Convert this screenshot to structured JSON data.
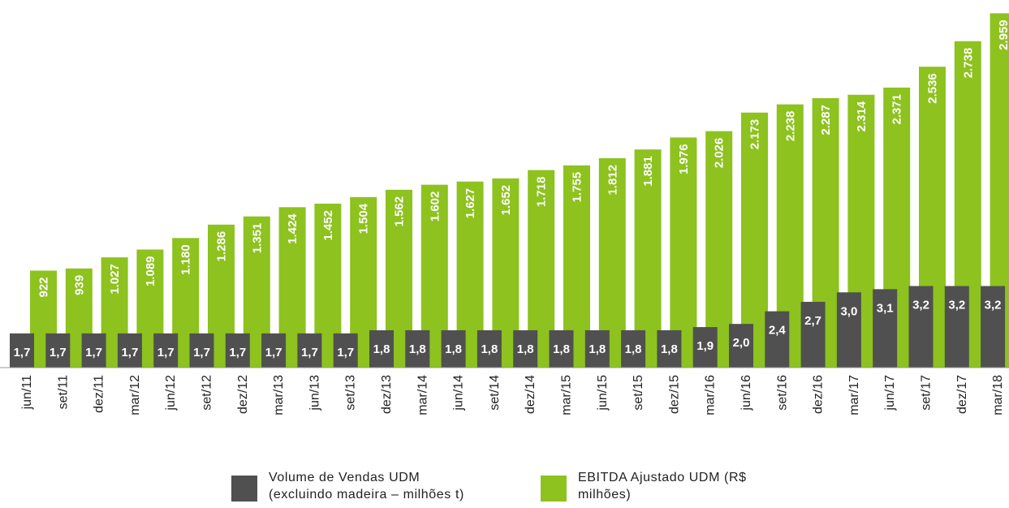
{
  "chart_data": {
    "type": "bar",
    "categories": [
      "jun/11",
      "set/11",
      "dez/11",
      "mar/12",
      "jun/12",
      "set/12",
      "dez/12",
      "mar/13",
      "jun/13",
      "set/13",
      "dez/13",
      "mar/14",
      "jun/14",
      "set/14",
      "dez/14",
      "mar/15",
      "jun/15",
      "set/15",
      "dez/15",
      "mar/16",
      "jun/16",
      "set/16",
      "dez/16",
      "mar/17",
      "jun/17",
      "set/17",
      "dez/17",
      "mar/18"
    ],
    "series": [
      {
        "name": "Volume de Vendas UDM (excluindo madeira – milhões t)",
        "color": "#505050",
        "axis": "y2",
        "values": [
          1.7,
          1.7,
          1.7,
          1.7,
          1.7,
          1.7,
          1.7,
          1.7,
          1.7,
          1.7,
          1.8,
          1.8,
          1.8,
          1.8,
          1.8,
          1.8,
          1.8,
          1.8,
          1.8,
          1.9,
          2.0,
          2.4,
          2.7,
          3.0,
          3.1,
          3.2,
          3.2,
          3.2
        ],
        "value_labels": [
          "1,7",
          "1,7",
          "1,7",
          "1,7",
          "1,7",
          "1,7",
          "1,7",
          "1,7",
          "1,7",
          "1,7",
          "1,8",
          "1,8",
          "1,8",
          "1,8",
          "1,8",
          "1,8",
          "1,8",
          "1,8",
          "1,8",
          "1,9",
          "2,0",
          "2,4",
          "2,7",
          "3,0",
          "3,1",
          "3,2",
          "3,2",
          "3,2"
        ]
      },
      {
        "name": "EBITDA Ajustado UDM (R$ milhões)",
        "color": "#8dc21f",
        "values": [
          922,
          939,
          1027,
          1089,
          1180,
          1286,
          1351,
          1424,
          1452,
          1504,
          1562,
          1602,
          1627,
          1652,
          1718,
          1755,
          1812,
          1881,
          1976,
          2026,
          2173,
          2238,
          2287,
          2314,
          2371,
          2536,
          2738,
          2959
        ],
        "value_labels": [
          "922",
          "939",
          "1.027",
          "1.089",
          "1.180",
          "1.286",
          "1.351",
          "1.424",
          "1.452",
          "1.504",
          "1.562",
          "1.602",
          "1.627",
          "1.652",
          "1.718",
          "1.755",
          "1.812",
          "1.881",
          "1.976",
          "2.026",
          "2.173",
          "2.238",
          "2.287",
          "2.314",
          "2.371",
          "2.536",
          "2.738",
          "2.959"
        ]
      }
    ],
    "ylim": [
      0,
      3000
    ],
    "y2lim": [
      0,
      12
    ]
  }
}
